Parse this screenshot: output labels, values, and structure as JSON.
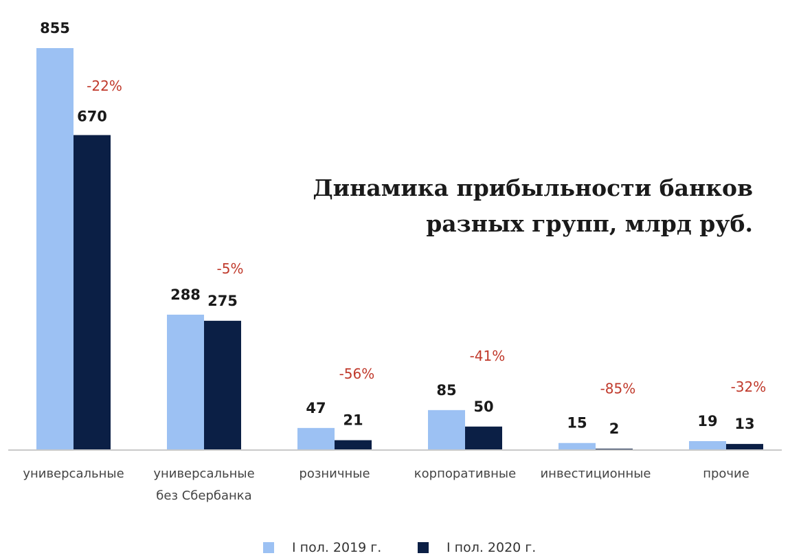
{
  "chart_data": {
    "type": "bar",
    "title": [
      "Динамика прибыльности банков",
      "разных групп, млрд руб."
    ],
    "categories": [
      [
        "универсальные"
      ],
      [
        "универсальные",
        "без Сбербанка"
      ],
      [
        "розничные"
      ],
      [
        "корпоративные"
      ],
      [
        "инвестиционные"
      ],
      [
        "прочие"
      ]
    ],
    "series": [
      {
        "name": "I пол. 2019 г.",
        "color": "#9cc1f3",
        "values": [
          855,
          288,
          47,
          85,
          15,
          19
        ]
      },
      {
        "name": "I пол. 2020 г.",
        "color": "#0b1f45",
        "values": [
          670,
          275,
          21,
          50,
          2,
          13
        ]
      }
    ],
    "changes": [
      "-22%",
      "-5%",
      "-56%",
      "-41%",
      "-85%",
      "-32%"
    ],
    "change_color": "#c0392b",
    "ylim": [
      0,
      855
    ],
    "grid": false,
    "legend_position": "bottom"
  }
}
